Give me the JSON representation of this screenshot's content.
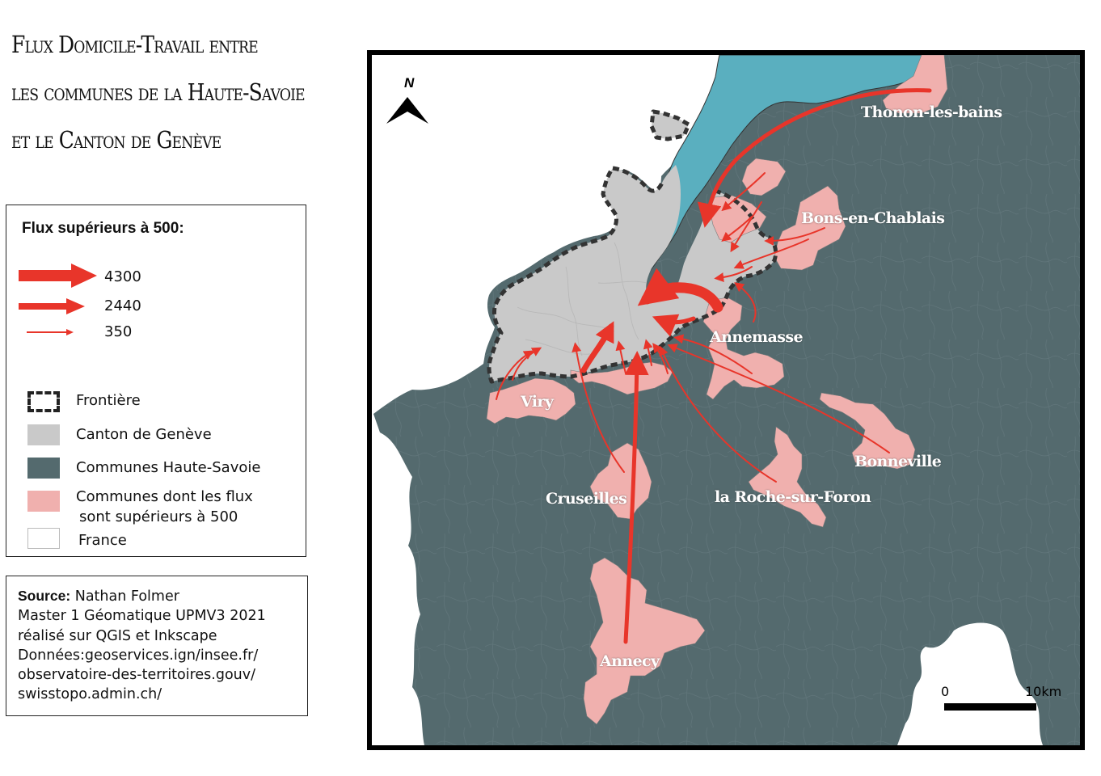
{
  "title": {
    "line1": "Flux Domicile-Travail entre",
    "line2": "les communes de la Haute-Savoie",
    "line3": "et le Canton de Genève"
  },
  "legend": {
    "title": "Flux supérieurs à 500:",
    "flows": [
      {
        "label": "4300",
        "value": 4300
      },
      {
        "label": "2440",
        "value": 2440
      },
      {
        "label": "350",
        "value": 350
      }
    ],
    "items": {
      "frontiere": "Frontière",
      "canton": "Canton de Genève",
      "communes_hs": "Communes Haute-Savoie",
      "communes_flux_1": "Communes dont les flux",
      "communes_flux_2": "sont supérieurs à 500",
      "france": "France"
    }
  },
  "source": {
    "label": "Source:",
    "author": "Nathan Folmer",
    "line2": "Master 1 Géomatique UPMV3 2021",
    "line3": "réalisé sur QGIS et Inkscape",
    "line4": "Données:geoservices.ign/insee.fr/",
    "line5": "observatoire-des-territoires.gouv/",
    "line6": "swisstopo.admin.ch/"
  },
  "map": {
    "north": "N",
    "scale_start": "0",
    "scale_end": "10km",
    "towns": {
      "thonon": "Thonon-les-bains",
      "bons": "Bons-en-Chablais",
      "annemasse": "Annemasse",
      "viry": "Viry",
      "cruseilles": "Cruseilles",
      "laroche": "la Roche-sur-Foron",
      "bonneville": "Bonneville",
      "annecy": "Annecy"
    }
  },
  "colors": {
    "haute_savoie": "#546a6e",
    "canton": "#c9c9c9",
    "communes_flux": "#f0b0ae",
    "lake": "#5aafbf",
    "france": "#ffffff",
    "arrow": "#e8352a",
    "border": "#333333"
  }
}
